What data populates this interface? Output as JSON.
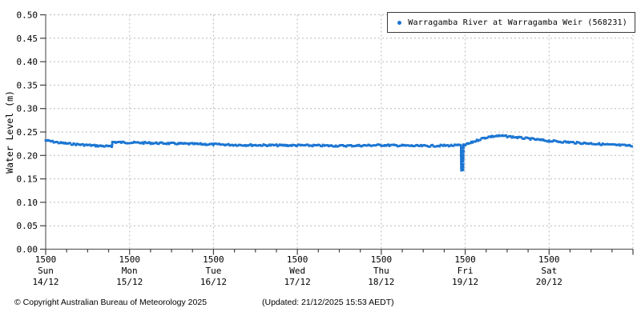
{
  "colors": {
    "accent": "#1b75d2",
    "grid": "#b9b9b9",
    "axis": "#606060",
    "tick": "#404040",
    "text": "#000000"
  },
  "footer": {
    "copyright": "© Copyright Australian Bureau of Meteorology 2025",
    "updated": "(Updated: 21/12/2025 15:53 AEDT)"
  },
  "chart_data": {
    "type": "scatter",
    "title": "",
    "xlabel": "",
    "ylabel": "Water Level (m)",
    "ylim": [
      0.0,
      0.5
    ],
    "ytick_step": 0.05,
    "ytick_labels": [
      "0.00",
      "0.05",
      "0.10",
      "0.15",
      "0.20",
      "0.25",
      "0.30",
      "0.35",
      "0.40",
      "0.45",
      "0.50"
    ],
    "grid": true,
    "x_range_hours": [
      0,
      168
    ],
    "minor_tick_hours": 6,
    "x_days": [
      {
        "time": "1500",
        "day": "Sun",
        "date": "14/12"
      },
      {
        "time": "1500",
        "day": "Mon",
        "date": "15/12"
      },
      {
        "time": "1500",
        "day": "Tue",
        "date": "16/12"
      },
      {
        "time": "1500",
        "day": "Wed",
        "date": "17/12"
      },
      {
        "time": "1500",
        "day": "Thu",
        "date": "18/12"
      },
      {
        "time": "1500",
        "day": "Fri",
        "date": "19/12"
      },
      {
        "time": "1500",
        "day": "Sat",
        "date": "20/12"
      }
    ],
    "legend": {
      "position": "top-right",
      "entries": [
        {
          "label": "Warragamba River at Warragamba Weir (568231)",
          "color": "#1b75d2",
          "marker": "circle"
        }
      ]
    },
    "series": [
      {
        "name": "Warragamba River at Warragamba Weir (568231)",
        "color": "#1b75d2",
        "units": "hours_from_Sun_14/12_1500_vs_metres",
        "points": [
          [
            0,
            0.232
          ],
          [
            2,
            0.2295
          ],
          [
            4,
            0.227
          ],
          [
            6,
            0.2255
          ],
          [
            9,
            0.2235
          ],
          [
            12,
            0.222
          ],
          [
            15,
            0.2205
          ],
          [
            18,
            0.2195
          ],
          [
            18.9,
            0.218
          ],
          [
            19.1,
            0.2285
          ],
          [
            21,
            0.228
          ],
          [
            24,
            0.2275
          ],
          [
            27,
            0.227
          ],
          [
            30,
            0.2265
          ],
          [
            33,
            0.226
          ],
          [
            36,
            0.2255
          ],
          [
            39,
            0.225
          ],
          [
            42,
            0.2245
          ],
          [
            45,
            0.224
          ],
          [
            48,
            0.2235
          ],
          [
            54,
            0.2225
          ],
          [
            60,
            0.222
          ],
          [
            66,
            0.2215
          ],
          [
            72,
            0.2215
          ],
          [
            78,
            0.221
          ],
          [
            84,
            0.2205
          ],
          [
            90,
            0.221
          ],
          [
            93,
            0.2215
          ],
          [
            96,
            0.222
          ],
          [
            99,
            0.2215
          ],
          [
            102,
            0.221
          ],
          [
            105,
            0.2205
          ],
          [
            108,
            0.2202
          ],
          [
            111,
            0.2205
          ],
          [
            114,
            0.221
          ],
          [
            117,
            0.2212
          ],
          [
            118.8,
            0.2215
          ],
          [
            118.9,
            0.169
          ],
          [
            119.4,
            0.168
          ],
          [
            119.5,
            0.2215
          ],
          [
            120,
            0.2225
          ],
          [
            121.5,
            0.2265
          ],
          [
            123,
            0.231
          ],
          [
            125,
            0.2365
          ],
          [
            127,
            0.24
          ],
          [
            129,
            0.2415
          ],
          [
            131,
            0.2415
          ],
          [
            133,
            0.24
          ],
          [
            136,
            0.2375
          ],
          [
            139,
            0.235
          ],
          [
            142,
            0.2325
          ],
          [
            144,
            0.231
          ],
          [
            147,
            0.2295
          ],
          [
            150,
            0.228
          ],
          [
            153,
            0.2265
          ],
          [
            156,
            0.2255
          ],
          [
            159,
            0.224
          ],
          [
            162,
            0.2225
          ],
          [
            165,
            0.2215
          ],
          [
            168,
            0.2205
          ]
        ]
      }
    ]
  }
}
